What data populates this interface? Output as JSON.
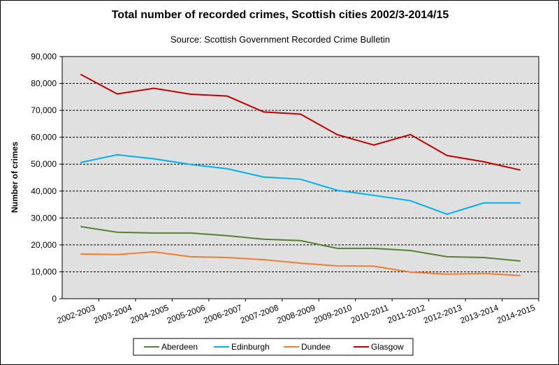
{
  "chart_data": {
    "type": "line",
    "title": "Total number of recorded crimes, Scottish cities 2002/3-2014/15",
    "subtitle": "Source: Scottish Government Recorded Crime Bulletin",
    "xlabel": "",
    "ylabel": "Number of crimes",
    "ylim": [
      0,
      90000
    ],
    "yticks": [
      "0",
      "10,000",
      "20,000",
      "30,000",
      "40,000",
      "50,000",
      "60,000",
      "70,000",
      "80,000",
      "90,000"
    ],
    "grid": true,
    "legend": "bottom",
    "categories": [
      "2002-2003",
      "2003-2004",
      "2004-2005",
      "2005-2006",
      "2006-2007",
      "2007-2008",
      "2008-2009",
      "2009-2010",
      "2010-2011",
      "2011-2012",
      "2012-2013",
      "2013-2014",
      "2014-2015"
    ],
    "series": [
      {
        "name": "Aberdeen",
        "color": "#538135",
        "values": [
          26800,
          24700,
          24400,
          24400,
          23400,
          22100,
          21600,
          18700,
          18700,
          17900,
          15600,
          15300,
          14000
        ]
      },
      {
        "name": "Edinburgh",
        "color": "#00b0f0",
        "values": [
          50600,
          53500,
          52000,
          49900,
          48300,
          45200,
          44400,
          40300,
          38400,
          36400,
          31400,
          35600,
          35600
        ]
      },
      {
        "name": "Dundee",
        "color": "#ed7d31",
        "values": [
          16600,
          16400,
          17400,
          15600,
          15300,
          14500,
          13200,
          12200,
          12100,
          9900,
          9100,
          9400,
          8600
        ]
      },
      {
        "name": "Glasgow",
        "color": "#c00000",
        "values": [
          83400,
          76100,
          78200,
          76000,
          75300,
          69400,
          68600,
          61000,
          57100,
          61000,
          53200,
          50900,
          47800
        ]
      }
    ]
  }
}
